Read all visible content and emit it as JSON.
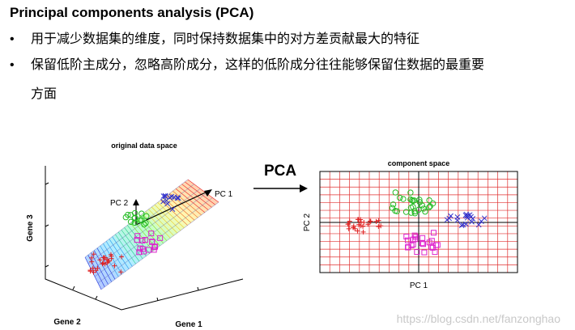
{
  "title": "Principal components analysis (PCA)",
  "bullets": [
    "用于减少数据集的维度，同时保持数据集中的对方差贡献最大的特征",
    "保留低阶主成分，忽略高阶成分，这样的低阶成分往往能够保留住数据的最重要",
    "方面"
  ],
  "bullet_symbol": "•",
  "figure": {
    "left_title": "original data space",
    "left_axes": {
      "gene1": "Gene 1",
      "gene2": "Gene 2",
      "gene3": "Gene 3"
    },
    "pc1": "PC 1",
    "pc2": "PC 2",
    "arrow_label": "PCA",
    "right_title": "component space",
    "right_xlabel": "PC 1",
    "right_ylabel": "PC 2"
  },
  "colors": {
    "red": "#e02020",
    "green": "#22bb22",
    "blue": "#3333cc",
    "magenta": "#dd22cc",
    "grid": "#e03030"
  },
  "watermark": "https://blog.csdn.net/fanzonghao"
}
